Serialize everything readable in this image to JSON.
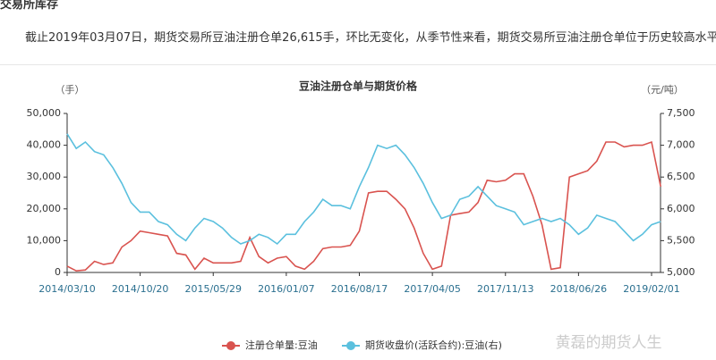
{
  "header": {
    "section": "交易所库存",
    "text": "截止2019年03月07日，期货交易所豆油注册仓单26,615手，环比无变化，从季节性来看，期货交易所豆油注册仓单位于历史较高水平。"
  },
  "watermark": "黄磊的期货人生",
  "chart_data": {
    "type": "line",
    "title": "豆油注册仓单与期货价格",
    "y_label": "（手）",
    "y2_label": "（元/吨）",
    "categories": [
      "2014/03/10",
      null,
      null,
      null,
      null,
      null,
      null,
      null,
      "2014/10/20",
      null,
      null,
      null,
      null,
      null,
      null,
      null,
      "2015/05/29",
      null,
      null,
      null,
      null,
      null,
      null,
      null,
      "2016/01/07",
      null,
      null,
      null,
      null,
      null,
      null,
      null,
      "2016/08/17",
      null,
      null,
      null,
      null,
      null,
      null,
      null,
      "2017/04/05",
      null,
      null,
      null,
      null,
      null,
      null,
      null,
      "2017/11/13",
      null,
      null,
      null,
      null,
      null,
      null,
      null,
      "2018/06/26",
      null,
      null,
      null,
      null,
      null,
      null,
      null,
      "2019/02/01",
      null
    ],
    "series": [
      {
        "name": "注册仓单量:豆油",
        "color": "#d9534f",
        "values": [
          2000,
          500,
          800,
          3500,
          2500,
          3000,
          8000,
          10000,
          13000,
          12500,
          12000,
          11500,
          6000,
          5500,
          1000,
          4500,
          3000,
          3000,
          3000,
          3500,
          11000,
          5000,
          3000,
          4500,
          5000,
          2000,
          1000,
          3500,
          7500,
          8000,
          8000,
          8500,
          13000,
          25000,
          25500,
          25500,
          23000,
          20000,
          14000,
          6000,
          1000,
          2000,
          18000,
          18500,
          19000,
          22000,
          29000,
          28500,
          29000,
          31000,
          31000,
          24000,
          15000,
          1000,
          1500,
          30000,
          31000,
          32000,
          35000,
          41000,
          41000,
          39500,
          40000,
          40000,
          41000,
          27000
        ]
      },
      {
        "name": "期货收盘价(活跃合约):豆油(右)",
        "color": "#5bc0de",
        "axis": "y2",
        "values": [
          7180,
          6950,
          7050,
          6900,
          6850,
          6650,
          6400,
          6100,
          5950,
          5950,
          5800,
          5750,
          5600,
          5500,
          5700,
          5850,
          5800,
          5700,
          5550,
          5450,
          5500,
          5600,
          5550,
          5450,
          5600,
          5600,
          5800,
          5950,
          6150,
          6050,
          6050,
          6000,
          6350,
          6650,
          7000,
          6950,
          7000,
          6850,
          6650,
          6400,
          6100,
          5850,
          5900,
          6150,
          6200,
          6350,
          6200,
          6050,
          6000,
          5950,
          5750,
          5800,
          5850,
          5800,
          5850,
          5750,
          5600,
          5700,
          5900,
          5850,
          5800,
          5650,
          5500,
          5600,
          5750,
          5800
        ]
      }
    ],
    "ylim": [
      0,
      50000
    ],
    "yticks": [
      0,
      {
        "value": 10000,
        "label": "10,000"
      },
      {
        "value": 20000,
        "label": "20,000"
      },
      {
        "value": 30000,
        "label": "30,000"
      },
      {
        "value": 40000,
        "label": "40,000"
      },
      {
        "value": 50000,
        "label": "50,000"
      }
    ],
    "y2lim": [
      5000,
      7500
    ],
    "y2ticks": [
      {
        "value": 5000,
        "label": "5,000"
      },
      {
        "value": 5500,
        "label": "5,500"
      },
      {
        "value": 6000,
        "label": "6,000"
      },
      {
        "value": 6500,
        "label": "6,500"
      },
      {
        "value": 7000,
        "label": "7,000"
      },
      {
        "value": 7500,
        "label": "7,500"
      }
    ],
    "legend": "bottom"
  }
}
